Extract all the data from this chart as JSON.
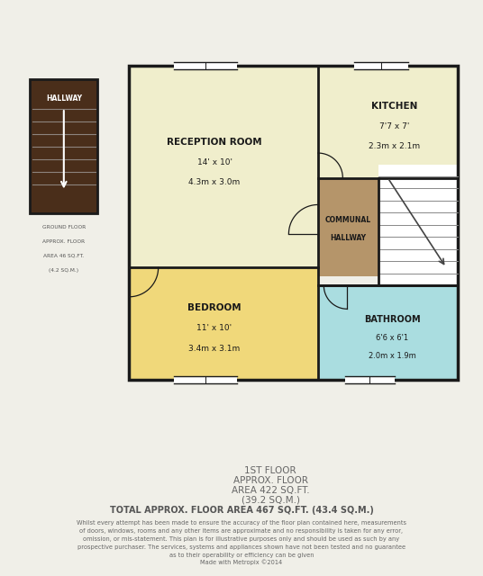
{
  "bg_color": "#f0efe8",
  "wall_color": "#1a1a1a",
  "wall_lw": 2.5,
  "room_colors": {
    "reception": "#f0eecc",
    "kitchen": "#f0eecc",
    "bedroom": "#f0d87a",
    "bathroom": "#aadde0",
    "communal": "#b5956a",
    "hallway_small": "#4a2e1a",
    "stair_bg": "#ffffff"
  },
  "footer_lines": [
    "1ST FLOOR",
    "APPROX. FLOOR",
    "AREA 422 SQ.FT.",
    "(39.2 SQ.M.)",
    "TOTAL APPROX. FLOOR AREA 467 SQ.FT. (43.4 SQ.M.)",
    "Whilst every attempt has been made to ensure the accuracy of the floor plan contained here, measurements",
    "of doors, windows, rooms and any other items are approximate and no responsibility is taken for any error,",
    "omission, or mis-statement. This plan is for illustrative purposes only and should be used as such by any",
    "prospective purchaser. The services, systems and appliances shown have not been tested and no guarantee",
    "as to their operability or efficiency can be given",
    "Made with Metropix ©2014"
  ],
  "ground_floor_text": [
    "GROUND FLOOR",
    "APPROX. FLOOR",
    "AREA 46 SQ.FT.",
    "(4.2 SQ.M.)"
  ]
}
